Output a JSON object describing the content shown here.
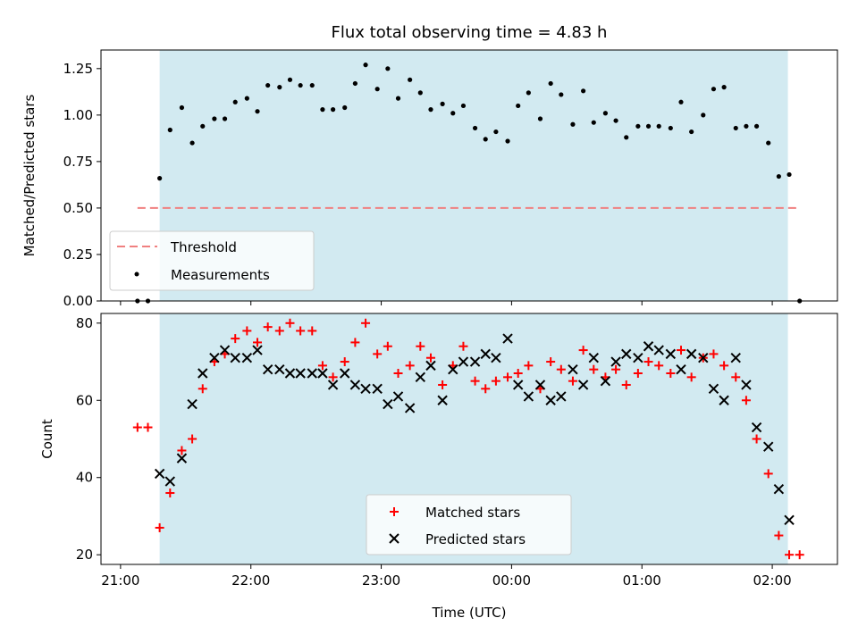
{
  "chart_data": {
    "title": "Flux total observing time = 4.83 h",
    "type": "scatter",
    "shared_x": {
      "label": "Time (UTC)",
      "unit": "hours since 21:00",
      "ticks": [
        {
          "value": 0,
          "label": "21:00"
        },
        {
          "value": 1,
          "label": "22:00"
        },
        {
          "value": 2,
          "label": "23:00"
        },
        {
          "value": 3,
          "label": "00:00"
        },
        {
          "value": 4,
          "label": "01:00"
        },
        {
          "value": 5,
          "label": "02:00"
        }
      ],
      "xlim": [
        -0.15,
        5.5
      ]
    },
    "observing_window": {
      "start": 0.3,
      "end": 5.12,
      "color": "#add8e6"
    },
    "panels": [
      {
        "id": "ratio",
        "ylabel": "Matched/Predicted stars",
        "ylim": [
          0,
          1.35
        ],
        "yticks": [
          0.0,
          0.25,
          0.5,
          0.75,
          1.0,
          1.25
        ],
        "ytick_labels": [
          "0.00",
          "0.25",
          "0.50",
          "0.75",
          "1.00",
          "1.25"
        ],
        "threshold": {
          "name": "Threshold",
          "value": 0.5,
          "x_start": 0.13,
          "x_end": 5.21,
          "color": "#f08080"
        },
        "series": [
          {
            "name": "Measurements",
            "color": "#000000",
            "marker": "dot",
            "points": [
              [
                0.13,
                0.0
              ],
              [
                0.21,
                0.0
              ],
              [
                0.3,
                0.66
              ],
              [
                0.38,
                0.92
              ],
              [
                0.47,
                1.04
              ],
              [
                0.55,
                0.85
              ],
              [
                0.63,
                0.94
              ],
              [
                0.72,
                0.98
              ],
              [
                0.8,
                0.98
              ],
              [
                0.88,
                1.07
              ],
              [
                0.97,
                1.09
              ],
              [
                1.05,
                1.02
              ],
              [
                1.13,
                1.16
              ],
              [
                1.22,
                1.15
              ],
              [
                1.3,
                1.19
              ],
              [
                1.38,
                1.16
              ],
              [
                1.47,
                1.16
              ],
              [
                1.55,
                1.03
              ],
              [
                1.63,
                1.03
              ],
              [
                1.72,
                1.04
              ],
              [
                1.8,
                1.17
              ],
              [
                1.88,
                1.27
              ],
              [
                1.97,
                1.14
              ],
              [
                2.05,
                1.25
              ],
              [
                2.13,
                1.09
              ],
              [
                2.22,
                1.19
              ],
              [
                2.3,
                1.12
              ],
              [
                2.38,
                1.03
              ],
              [
                2.47,
                1.06
              ],
              [
                2.55,
                1.01
              ],
              [
                2.63,
                1.05
              ],
              [
                2.72,
                0.93
              ],
              [
                2.8,
                0.87
              ],
              [
                2.88,
                0.91
              ],
              [
                2.97,
                0.86
              ],
              [
                3.05,
                1.05
              ],
              [
                3.13,
                1.12
              ],
              [
                3.22,
                0.98
              ],
              [
                3.3,
                1.17
              ],
              [
                3.38,
                1.11
              ],
              [
                3.47,
                0.95
              ],
              [
                3.55,
                1.13
              ],
              [
                3.63,
                0.96
              ],
              [
                3.72,
                1.01
              ],
              [
                3.8,
                0.97
              ],
              [
                3.88,
                0.88
              ],
              [
                3.97,
                0.94
              ],
              [
                4.05,
                0.94
              ],
              [
                4.13,
                0.94
              ],
              [
                4.22,
                0.93
              ],
              [
                4.3,
                1.07
              ],
              [
                4.38,
                0.91
              ],
              [
                4.47,
                1.0
              ],
              [
                4.55,
                1.14
              ],
              [
                4.63,
                1.15
              ],
              [
                4.72,
                0.93
              ],
              [
                4.8,
                0.94
              ],
              [
                4.88,
                0.94
              ],
              [
                4.97,
                0.85
              ],
              [
                5.05,
                0.67
              ],
              [
                5.13,
                0.68
              ],
              [
                5.21,
                0.0
              ]
            ]
          }
        ],
        "legend": {
          "position": "lower-left",
          "entries": [
            "Threshold",
            "Measurements"
          ]
        }
      },
      {
        "id": "count",
        "ylabel": "Count",
        "ylim": [
          17.5,
          82.5
        ],
        "yticks": [
          20,
          40,
          60,
          80
        ],
        "ytick_labels": [
          "20",
          "40",
          "60",
          "80"
        ],
        "series": [
          {
            "name": "Matched stars",
            "color": "#ff0000",
            "marker": "plus",
            "points": [
              [
                0.13,
                53
              ],
              [
                0.21,
                53
              ],
              [
                0.3,
                27
              ],
              [
                0.38,
                36
              ],
              [
                0.47,
                47
              ],
              [
                0.55,
                50
              ],
              [
                0.63,
                63
              ],
              [
                0.72,
                70
              ],
              [
                0.8,
                72
              ],
              [
                0.88,
                76
              ],
              [
                0.97,
                78
              ],
              [
                1.05,
                75
              ],
              [
                1.13,
                79
              ],
              [
                1.22,
                78
              ],
              [
                1.3,
                80
              ],
              [
                1.38,
                78
              ],
              [
                1.47,
                78
              ],
              [
                1.55,
                69
              ],
              [
                1.63,
                66
              ],
              [
                1.72,
                70
              ],
              [
                1.8,
                75
              ],
              [
                1.88,
                80
              ],
              [
                1.97,
                72
              ],
              [
                2.05,
                74
              ],
              [
                2.13,
                67
              ],
              [
                2.22,
                69
              ],
              [
                2.3,
                74
              ],
              [
                2.38,
                71
              ],
              [
                2.47,
                64
              ],
              [
                2.55,
                69
              ],
              [
                2.63,
                74
              ],
              [
                2.72,
                65
              ],
              [
                2.8,
                63
              ],
              [
                2.88,
                65
              ],
              [
                2.97,
                66
              ],
              [
                3.05,
                67
              ],
              [
                3.13,
                69
              ],
              [
                3.22,
                63
              ],
              [
                3.3,
                70
              ],
              [
                3.38,
                68
              ],
              [
                3.47,
                65
              ],
              [
                3.55,
                73
              ],
              [
                3.63,
                68
              ],
              [
                3.72,
                66
              ],
              [
                3.8,
                68
              ],
              [
                3.88,
                64
              ],
              [
                3.97,
                67
              ],
              [
                4.05,
                70
              ],
              [
                4.13,
                69
              ],
              [
                4.22,
                67
              ],
              [
                4.3,
                73
              ],
              [
                4.38,
                66
              ],
              [
                4.47,
                71
              ],
              [
                4.55,
                72
              ],
              [
                4.63,
                69
              ],
              [
                4.72,
                66
              ],
              [
                4.8,
                60
              ],
              [
                4.88,
                50
              ],
              [
                4.97,
                41
              ],
              [
                5.05,
                25
              ],
              [
                5.13,
                20
              ],
              [
                5.21,
                20
              ]
            ]
          },
          {
            "name": "Predicted stars",
            "color": "#000000",
            "marker": "x",
            "points": [
              [
                0.3,
                41
              ],
              [
                0.38,
                39
              ],
              [
                0.47,
                45
              ],
              [
                0.55,
                59
              ],
              [
                0.63,
                67
              ],
              [
                0.72,
                71
              ],
              [
                0.8,
                73
              ],
              [
                0.88,
                71
              ],
              [
                0.97,
                71
              ],
              [
                1.05,
                73
              ],
              [
                1.13,
                68
              ],
              [
                1.22,
                68
              ],
              [
                1.3,
                67
              ],
              [
                1.38,
                67
              ],
              [
                1.47,
                67
              ],
              [
                1.55,
                67
              ],
              [
                1.63,
                64
              ],
              [
                1.72,
                67
              ],
              [
                1.8,
                64
              ],
              [
                1.88,
                63
              ],
              [
                1.97,
                63
              ],
              [
                2.05,
                59
              ],
              [
                2.13,
                61
              ],
              [
                2.22,
                58
              ],
              [
                2.3,
                66
              ],
              [
                2.38,
                69
              ],
              [
                2.47,
                60
              ],
              [
                2.55,
                68
              ],
              [
                2.63,
                70
              ],
              [
                2.72,
                70
              ],
              [
                2.8,
                72
              ],
              [
                2.88,
                71
              ],
              [
                2.97,
                76
              ],
              [
                3.05,
                64
              ],
              [
                3.13,
                61
              ],
              [
                3.22,
                64
              ],
              [
                3.3,
                60
              ],
              [
                3.38,
                61
              ],
              [
                3.47,
                68
              ],
              [
                3.55,
                64
              ],
              [
                3.63,
                71
              ],
              [
                3.72,
                65
              ],
              [
                3.8,
                70
              ],
              [
                3.88,
                72
              ],
              [
                3.97,
                71
              ],
              [
                4.05,
                74
              ],
              [
                4.13,
                73
              ],
              [
                4.22,
                72
              ],
              [
                4.3,
                68
              ],
              [
                4.38,
                72
              ],
              [
                4.47,
                71
              ],
              [
                4.55,
                63
              ],
              [
                4.63,
                60
              ],
              [
                4.72,
                71
              ],
              [
                4.8,
                64
              ],
              [
                4.88,
                53
              ],
              [
                4.97,
                48
              ],
              [
                5.05,
                37
              ],
              [
                5.13,
                29
              ]
            ]
          }
        ],
        "legend": {
          "position": "lower-center",
          "entries": [
            "Matched stars",
            "Predicted stars"
          ]
        }
      }
    ]
  }
}
